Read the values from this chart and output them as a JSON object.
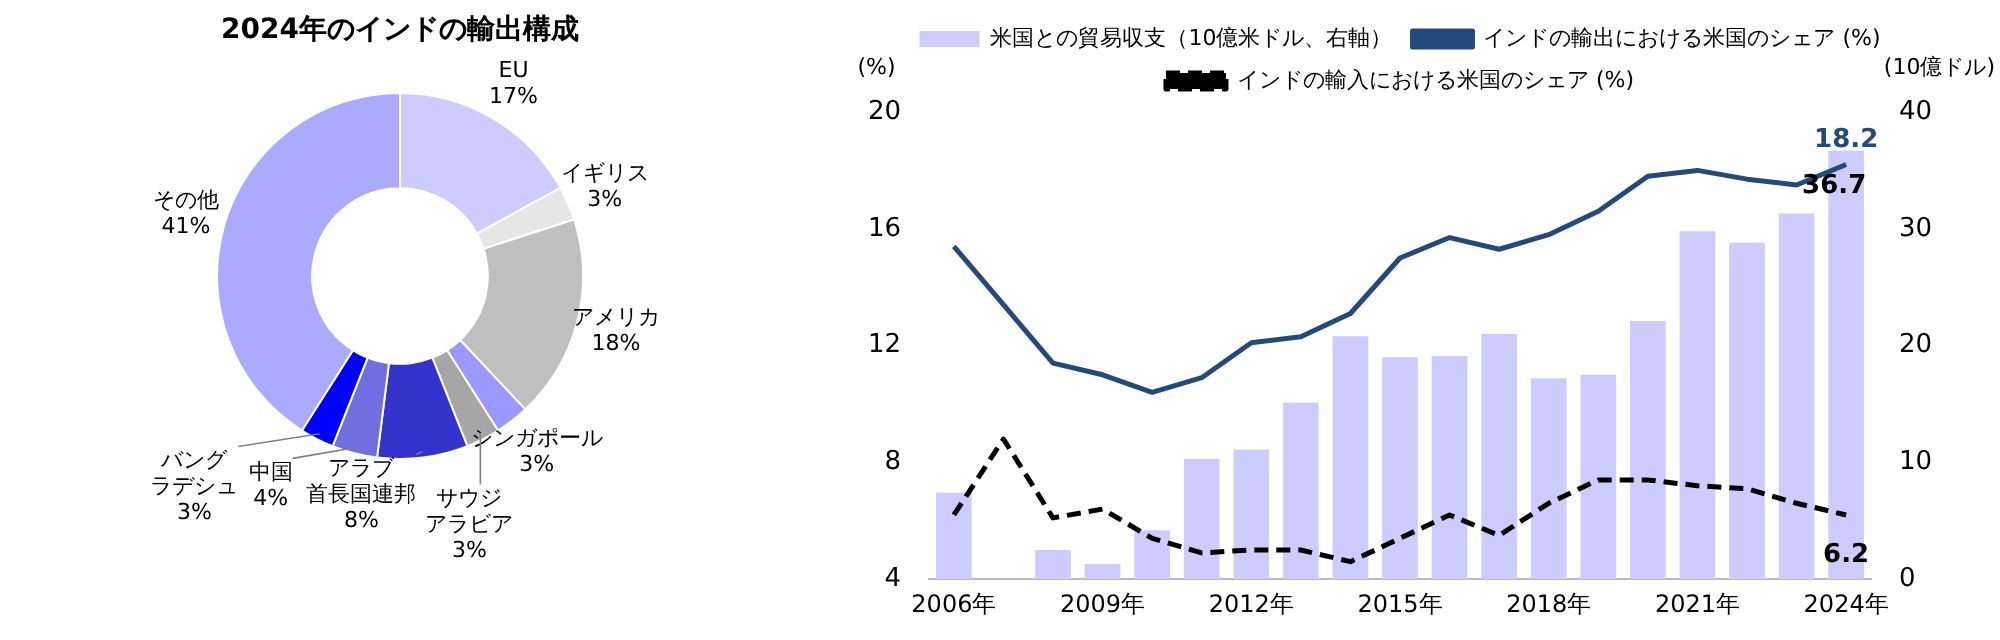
{
  "chart_data": [
    {
      "type": "donut",
      "title": "2024年のインドの輸出構成",
      "legend": false,
      "categories": [
        "EU",
        "イギリス",
        "アメリカ",
        "シンガポール",
        "サウジアラビア",
        "アラブ首長国連邦",
        "中国",
        "バングラデシュ",
        "その他"
      ],
      "values": [
        17,
        3,
        18,
        3,
        3,
        8,
        4,
        3,
        41
      ],
      "value_labels": [
        "17%",
        "3%",
        "18%",
        "3%",
        "3%",
        "8%",
        "4%",
        "3%",
        "41%"
      ],
      "colors": [
        "#ccccff",
        "#e6e6e6",
        "#bfbfbf",
        "#9999ff",
        "#a6a6a6",
        "#3333cc",
        "#6f6fdf",
        "#0000ff",
        "#aaaaff"
      ]
    },
    {
      "type": "bar",
      "ylabel": "(%)",
      "y2label": "(10億ドル)",
      "legend": "top",
      "grid": false,
      "categories": [
        "2006年",
        null,
        null,
        "2009年",
        null,
        null,
        "2012年",
        null,
        null,
        "2015年",
        null,
        null,
        "2018年",
        null,
        null,
        "2021年",
        null,
        null,
        "2024年"
      ],
      "ylim": [
        4,
        20
      ],
      "yticks": [
        4,
        8,
        12,
        16,
        20
      ],
      "y2lim": [
        0,
        40
      ],
      "y2ticks": [
        0,
        10,
        20,
        30,
        40
      ],
      "series": [
        {
          "name": "米国との貿易収支（10億米ドル、右軸）",
          "type": "bar",
          "axis": "y2",
          "color": "#ccccff",
          "values": [
            7.4,
            null,
            2.5,
            1.3,
            4.2,
            10.3,
            11.1,
            15.1,
            20.8,
            19.0,
            19.1,
            21.0,
            17.2,
            17.5,
            22.1,
            29.8,
            28.8,
            31.3,
            36.7
          ],
          "value_labels": [
            null,
            null,
            null,
            null,
            null,
            null,
            null,
            null,
            null,
            null,
            null,
            null,
            null,
            null,
            null,
            null,
            null,
            null,
            "36.7"
          ]
        },
        {
          "name": "インドの輸出における米国のシェア (%)",
          "type": "line",
          "color": "#244a7c",
          "line_style": "solid",
          "marker": "none",
          "values": [
            15.4,
            13.4,
            11.4,
            11.0,
            10.4,
            10.9,
            12.1,
            12.3,
            13.1,
            15.0,
            15.7,
            15.3,
            15.8,
            16.6,
            17.8,
            18.0,
            17.7,
            17.5,
            18.2
          ],
          "value_labels": [
            null,
            null,
            null,
            null,
            null,
            null,
            null,
            null,
            null,
            null,
            null,
            null,
            null,
            null,
            null,
            null,
            null,
            null,
            "18.2"
          ]
        },
        {
          "name": "インドの輸入における米国のシェア (%)",
          "type": "line",
          "color": "#000000",
          "line_style": "dashed",
          "marker": "none",
          "values": [
            6.2,
            8.8,
            6.1,
            6.4,
            5.4,
            4.9,
            5.0,
            5.0,
            4.6,
            5.4,
            6.2,
            5.5,
            6.6,
            7.4,
            7.4,
            7.2,
            7.1,
            6.6,
            6.2
          ],
          "value_labels": [
            null,
            null,
            null,
            null,
            null,
            null,
            null,
            null,
            null,
            null,
            null,
            null,
            null,
            null,
            null,
            null,
            null,
            null,
            "6.2"
          ]
        }
      ]
    }
  ]
}
